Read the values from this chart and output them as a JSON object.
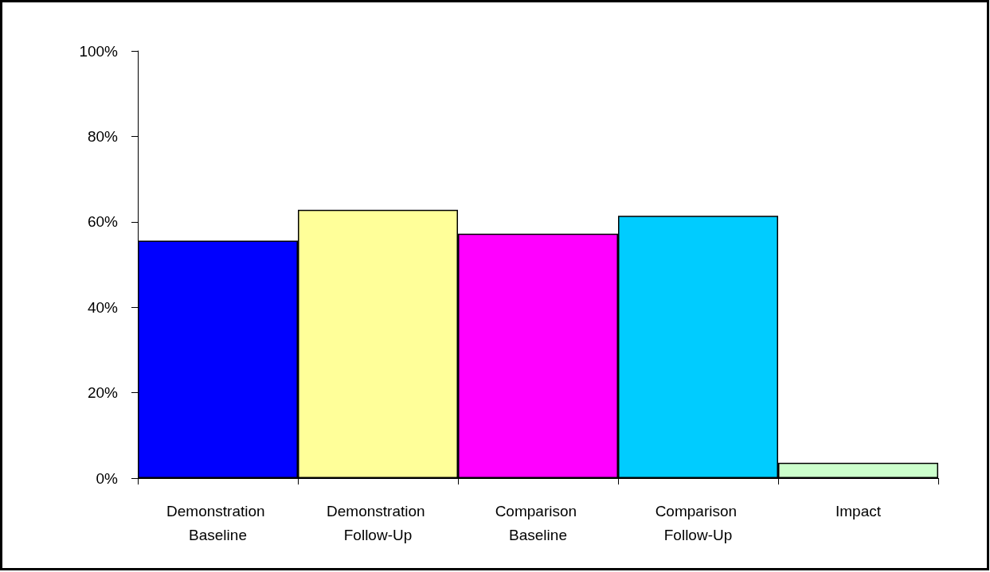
{
  "chart_data": {
    "type": "bar",
    "categories": [
      "Demonstration Baseline",
      "Demonstration Follow-Up",
      "Comparison Baseline",
      "Comparison Follow-Up",
      "Impact"
    ],
    "values": [
      55.6,
      62.8,
      57.2,
      61.4,
      3.6
    ],
    "colors": [
      "#0000ff",
      "#ffff99",
      "#ff00ff",
      "#00ccff",
      "#ccffcc"
    ],
    "ylim": [
      0,
      100
    ],
    "yticks": [
      {
        "value": 0,
        "label": "0%"
      },
      {
        "value": 20,
        "label": "20%"
      },
      {
        "value": 40,
        "label": "40%"
      },
      {
        "value": 60,
        "label": "60%"
      },
      {
        "value": 80,
        "label": "80%"
      },
      {
        "value": 100,
        "label": "100%"
      }
    ],
    "grid": false
  }
}
